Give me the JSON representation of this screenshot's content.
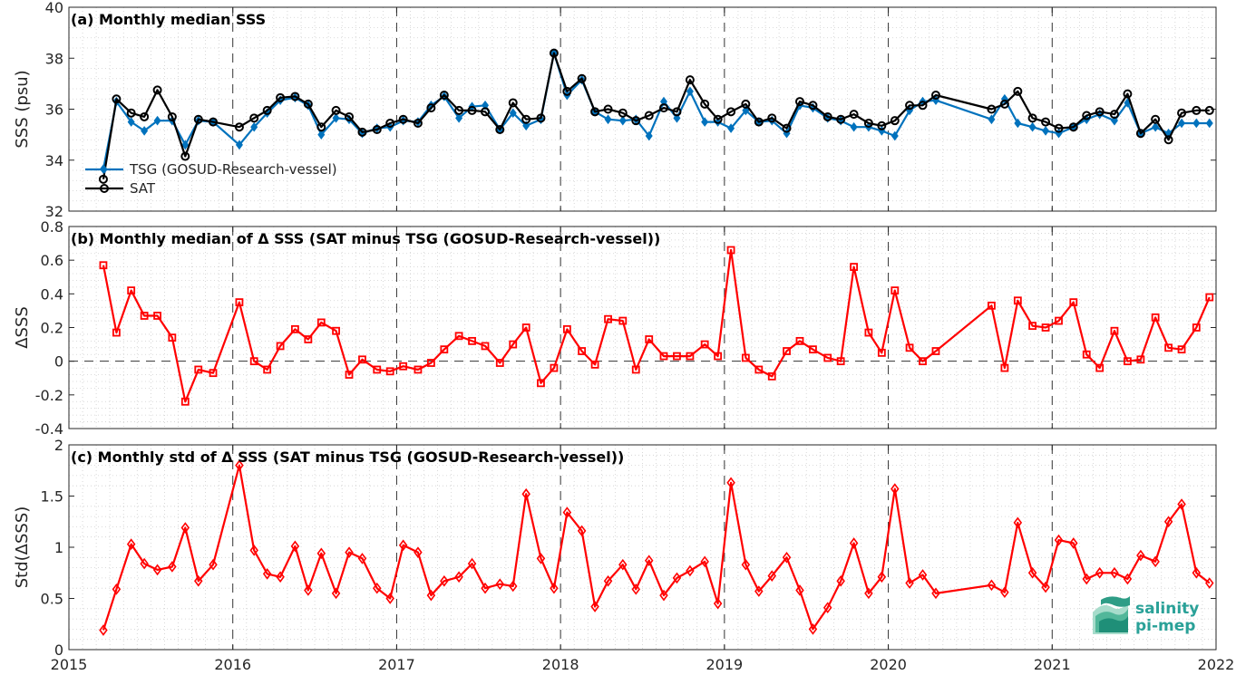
{
  "chart_data": [
    {
      "type": "line",
      "title": "(a) Monthly median SSS",
      "ylabel": "SSS (psu)",
      "xlim": [
        2015,
        2022
      ],
      "ylim": [
        32,
        40
      ],
      "yticks": [
        32,
        34,
        36,
        38,
        40
      ],
      "xticks": [
        2015,
        2016,
        2017,
        2018,
        2019,
        2020,
        2021,
        2022
      ],
      "grid": true,
      "legend_position": "bottom-left",
      "series": [
        {
          "name": "TSG (GOSUD-Research-vessel)",
          "color": "#0072bd",
          "marker": "diamond",
          "x": [
            2015.21,
            2015.29,
            2015.38,
            2015.46,
            2015.54,
            2015.63,
            2015.71,
            2015.79,
            2015.88,
            2016.04,
            2016.13,
            2016.21,
            2016.29,
            2016.38,
            2016.46,
            2016.54,
            2016.63,
            2016.71,
            2016.79,
            2016.88,
            2016.96,
            2017.04,
            2017.13,
            2017.21,
            2017.29,
            2017.38,
            2017.46,
            2017.54,
            2017.63,
            2017.71,
            2017.79,
            2017.88,
            2017.96,
            2018.04,
            2018.13,
            2018.21,
            2018.29,
            2018.38,
            2018.46,
            2018.54,
            2018.63,
            2018.71,
            2018.79,
            2018.88,
            2018.96,
            2019.04,
            2019.13,
            2019.21,
            2019.29,
            2019.38,
            2019.46,
            2019.54,
            2019.63,
            2019.71,
            2019.79,
            2019.88,
            2019.96,
            2020.04,
            2020.13,
            2020.21,
            2020.29,
            2020.63,
            2020.71,
            2020.79,
            2020.88,
            2020.96,
            2021.04,
            2021.13,
            2021.21,
            2021.29,
            2021.38,
            2021.46,
            2021.54,
            2021.63,
            2021.71,
            2021.79,
            2021.88,
            2021.96
          ],
          "values": [
            33.65,
            36.3,
            35.5,
            35.15,
            35.55,
            35.55,
            34.6,
            35.55,
            35.5,
            34.6,
            35.3,
            35.85,
            36.35,
            36.45,
            36.15,
            35.0,
            35.65,
            35.6,
            35.05,
            35.25,
            35.3,
            35.55,
            35.5,
            36.15,
            36.5,
            35.65,
            36.1,
            36.15,
            35.2,
            35.85,
            35.35,
            35.6,
            38.2,
            36.55,
            37.15,
            35.9,
            35.6,
            35.55,
            35.6,
            34.95,
            36.3,
            35.65,
            36.7,
            35.5,
            35.5,
            35.25,
            35.95,
            35.5,
            35.55,
            35.05,
            36.15,
            36.05,
            35.65,
            35.55,
            35.3,
            35.3,
            35.15,
            34.95,
            35.95,
            36.3,
            36.35,
            35.6,
            36.4,
            35.45,
            35.3,
            35.15,
            35.05,
            35.3,
            35.6,
            35.8,
            35.55,
            36.25,
            35.05,
            35.3,
            35.05,
            35.45,
            35.45,
            35.45
          ]
        },
        {
          "name": "SAT",
          "color": "#000000",
          "marker": "circle",
          "x": [
            2015.21,
            2015.29,
            2015.38,
            2015.46,
            2015.54,
            2015.63,
            2015.71,
            2015.79,
            2015.88,
            2016.04,
            2016.13,
            2016.21,
            2016.29,
            2016.38,
            2016.46,
            2016.54,
            2016.63,
            2016.71,
            2016.79,
            2016.88,
            2016.96,
            2017.04,
            2017.13,
            2017.21,
            2017.29,
            2017.38,
            2017.46,
            2017.54,
            2017.63,
            2017.71,
            2017.79,
            2017.88,
            2017.96,
            2018.04,
            2018.13,
            2018.21,
            2018.29,
            2018.38,
            2018.46,
            2018.54,
            2018.63,
            2018.71,
            2018.79,
            2018.88,
            2018.96,
            2019.04,
            2019.13,
            2019.21,
            2019.29,
            2019.38,
            2019.46,
            2019.54,
            2019.63,
            2019.71,
            2019.79,
            2019.88,
            2019.96,
            2020.04,
            2020.13,
            2020.21,
            2020.29,
            2020.63,
            2020.71,
            2020.79,
            2020.88,
            2020.96,
            2021.04,
            2021.13,
            2021.21,
            2021.29,
            2021.38,
            2021.46,
            2021.54,
            2021.63,
            2021.71,
            2021.79,
            2021.88,
            2021.96
          ],
          "values": [
            33.25,
            36.4,
            35.85,
            35.7,
            36.75,
            35.7,
            34.15,
            35.6,
            35.5,
            35.3,
            35.65,
            35.95,
            36.45,
            36.5,
            36.2,
            35.3,
            35.95,
            35.7,
            35.1,
            35.2,
            35.45,
            35.6,
            35.45,
            36.05,
            36.55,
            35.95,
            35.95,
            35.9,
            35.2,
            36.25,
            35.6,
            35.65,
            38.2,
            36.7,
            37.2,
            35.9,
            36.0,
            35.85,
            35.55,
            35.75,
            36.05,
            35.9,
            37.15,
            36.2,
            35.6,
            35.9,
            36.2,
            35.5,
            35.65,
            35.25,
            36.3,
            36.15,
            35.7,
            35.6,
            35.8,
            35.45,
            35.35,
            35.55,
            36.15,
            36.15,
            36.55,
            36.0,
            36.2,
            36.7,
            35.65,
            35.5,
            35.25,
            35.3,
            35.75,
            35.9,
            35.8,
            36.6,
            35.05,
            35.6,
            34.8,
            35.85,
            35.95,
            35.95
          ]
        }
      ]
    },
    {
      "type": "line",
      "title": "(b) Monthly median of Δ SSS (SAT minus TSG (GOSUD-Research-vessel))",
      "ylabel": "ΔSSS",
      "xlim": [
        2015,
        2022
      ],
      "ylim": [
        -0.4,
        0.8
      ],
      "yticks": [
        -0.4,
        -0.2,
        0,
        0.2,
        0.4,
        0.6,
        0.8
      ],
      "ytick_labels": [
        "-0.4",
        "-0.2",
        "0",
        "0.2",
        "0.4",
        "0.6",
        "0.8"
      ],
      "xticks": [
        2015,
        2016,
        2017,
        2018,
        2019,
        2020,
        2021,
        2022
      ],
      "grid": true,
      "reference_line": 0,
      "series": [
        {
          "color": "#ff0000",
          "marker": "square",
          "x": [
            2015.21,
            2015.29,
            2015.38,
            2015.46,
            2015.54,
            2015.63,
            2015.71,
            2015.79,
            2015.88,
            2016.04,
            2016.13,
            2016.21,
            2016.29,
            2016.38,
            2016.46,
            2016.54,
            2016.63,
            2016.71,
            2016.79,
            2016.88,
            2016.96,
            2017.04,
            2017.13,
            2017.21,
            2017.29,
            2017.38,
            2017.46,
            2017.54,
            2017.63,
            2017.71,
            2017.79,
            2017.88,
            2017.96,
            2018.04,
            2018.13,
            2018.21,
            2018.29,
            2018.38,
            2018.46,
            2018.54,
            2018.63,
            2018.71,
            2018.79,
            2018.88,
            2018.96,
            2019.04,
            2019.13,
            2019.21,
            2019.29,
            2019.38,
            2019.46,
            2019.54,
            2019.63,
            2019.71,
            2019.79,
            2019.88,
            2019.96,
            2020.04,
            2020.13,
            2020.21,
            2020.29,
            2020.63,
            2020.71,
            2020.79,
            2020.88,
            2020.96,
            2021.04,
            2021.13,
            2021.21,
            2021.29,
            2021.38,
            2021.46,
            2021.54,
            2021.63,
            2021.71,
            2021.79,
            2021.88,
            2021.96
          ],
          "values": [
            0.57,
            0.17,
            0.42,
            0.27,
            0.27,
            0.14,
            -0.24,
            -0.05,
            -0.07,
            0.35,
            0.0,
            -0.05,
            0.09,
            0.19,
            0.13,
            0.23,
            0.18,
            -0.08,
            0.01,
            -0.05,
            -0.06,
            -0.03,
            -0.05,
            -0.01,
            0.07,
            0.15,
            0.12,
            0.09,
            -0.01,
            0.1,
            0.2,
            -0.13,
            -0.04,
            0.19,
            0.06,
            -0.02,
            0.25,
            0.24,
            -0.05,
            0.13,
            0.03,
            0.03,
            0.03,
            0.1,
            0.03,
            0.66,
            0.02,
            -0.05,
            -0.09,
            0.06,
            0.12,
            0.07,
            0.02,
            0.0,
            0.56,
            0.17,
            0.05,
            0.42,
            0.08,
            0.0,
            0.06,
            0.33,
            -0.04,
            0.36,
            0.21,
            0.2,
            0.24,
            0.35,
            0.04,
            -0.04,
            0.18,
            0.0,
            0.01,
            0.26,
            0.08,
            0.07,
            0.2,
            0.38
          ]
        }
      ]
    },
    {
      "type": "line",
      "title": "(c) Monthly std of Δ SSS (SAT minus TSG (GOSUD-Research-vessel))",
      "ylabel": "Std(ΔSSS)",
      "xlim": [
        2015,
        2022
      ],
      "ylim": [
        0,
        2
      ],
      "yticks": [
        0,
        0.5,
        1,
        1.5,
        2
      ],
      "ytick_labels": [
        "0",
        "0.5",
        "1",
        "1.5",
        "2"
      ],
      "xticks": [
        2015,
        2016,
        2017,
        2018,
        2019,
        2020,
        2021,
        2022
      ],
      "xtick_labels": [
        "2015",
        "2016",
        "2017",
        "2018",
        "2019",
        "2020",
        "2021",
        "2022"
      ],
      "grid": true,
      "series": [
        {
          "color": "#ff0000",
          "marker": "diamond",
          "x": [
            2015.21,
            2015.29,
            2015.38,
            2015.46,
            2015.54,
            2015.63,
            2015.71,
            2015.79,
            2015.88,
            2016.04,
            2016.13,
            2016.21,
            2016.29,
            2016.38,
            2016.46,
            2016.54,
            2016.63,
            2016.71,
            2016.79,
            2016.88,
            2016.96,
            2017.04,
            2017.13,
            2017.21,
            2017.29,
            2017.38,
            2017.46,
            2017.54,
            2017.63,
            2017.71,
            2017.79,
            2017.88,
            2017.96,
            2018.04,
            2018.13,
            2018.21,
            2018.29,
            2018.38,
            2018.46,
            2018.54,
            2018.63,
            2018.71,
            2018.79,
            2018.88,
            2018.96,
            2019.04,
            2019.13,
            2019.21,
            2019.29,
            2019.38,
            2019.46,
            2019.54,
            2019.63,
            2019.71,
            2019.79,
            2019.88,
            2019.96,
            2020.04,
            2020.13,
            2020.21,
            2020.29,
            2020.63,
            2020.71,
            2020.79,
            2020.88,
            2020.96,
            2021.04,
            2021.13,
            2021.21,
            2021.29,
            2021.38,
            2021.46,
            2021.54,
            2021.63,
            2021.71,
            2021.79,
            2021.88,
            2021.96
          ],
          "values": [
            0.19,
            0.59,
            1.03,
            0.84,
            0.78,
            0.81,
            1.19,
            0.67,
            0.83,
            1.8,
            0.97,
            0.74,
            0.71,
            1.01,
            0.58,
            0.94,
            0.55,
            0.95,
            0.89,
            0.6,
            0.5,
            1.02,
            0.95,
            0.53,
            0.67,
            0.71,
            0.84,
            0.6,
            0.64,
            0.62,
            1.52,
            0.89,
            0.6,
            1.34,
            1.16,
            0.42,
            0.67,
            0.83,
            0.59,
            0.87,
            0.53,
            0.7,
            0.77,
            0.86,
            0.45,
            1.63,
            0.83,
            0.57,
            0.72,
            0.9,
            0.58,
            0.2,
            0.41,
            0.67,
            1.04,
            0.55,
            0.71,
            1.57,
            0.65,
            0.73,
            0.55,
            0.63,
            0.56,
            1.24,
            0.75,
            0.61,
            1.07,
            1.04,
            0.69,
            0.75,
            0.75,
            0.69,
            0.92,
            0.86,
            1.25,
            1.42,
            0.75,
            0.65
          ]
        }
      ]
    }
  ],
  "logo": {
    "line1": "salinity",
    "line2": "pi-mep"
  }
}
